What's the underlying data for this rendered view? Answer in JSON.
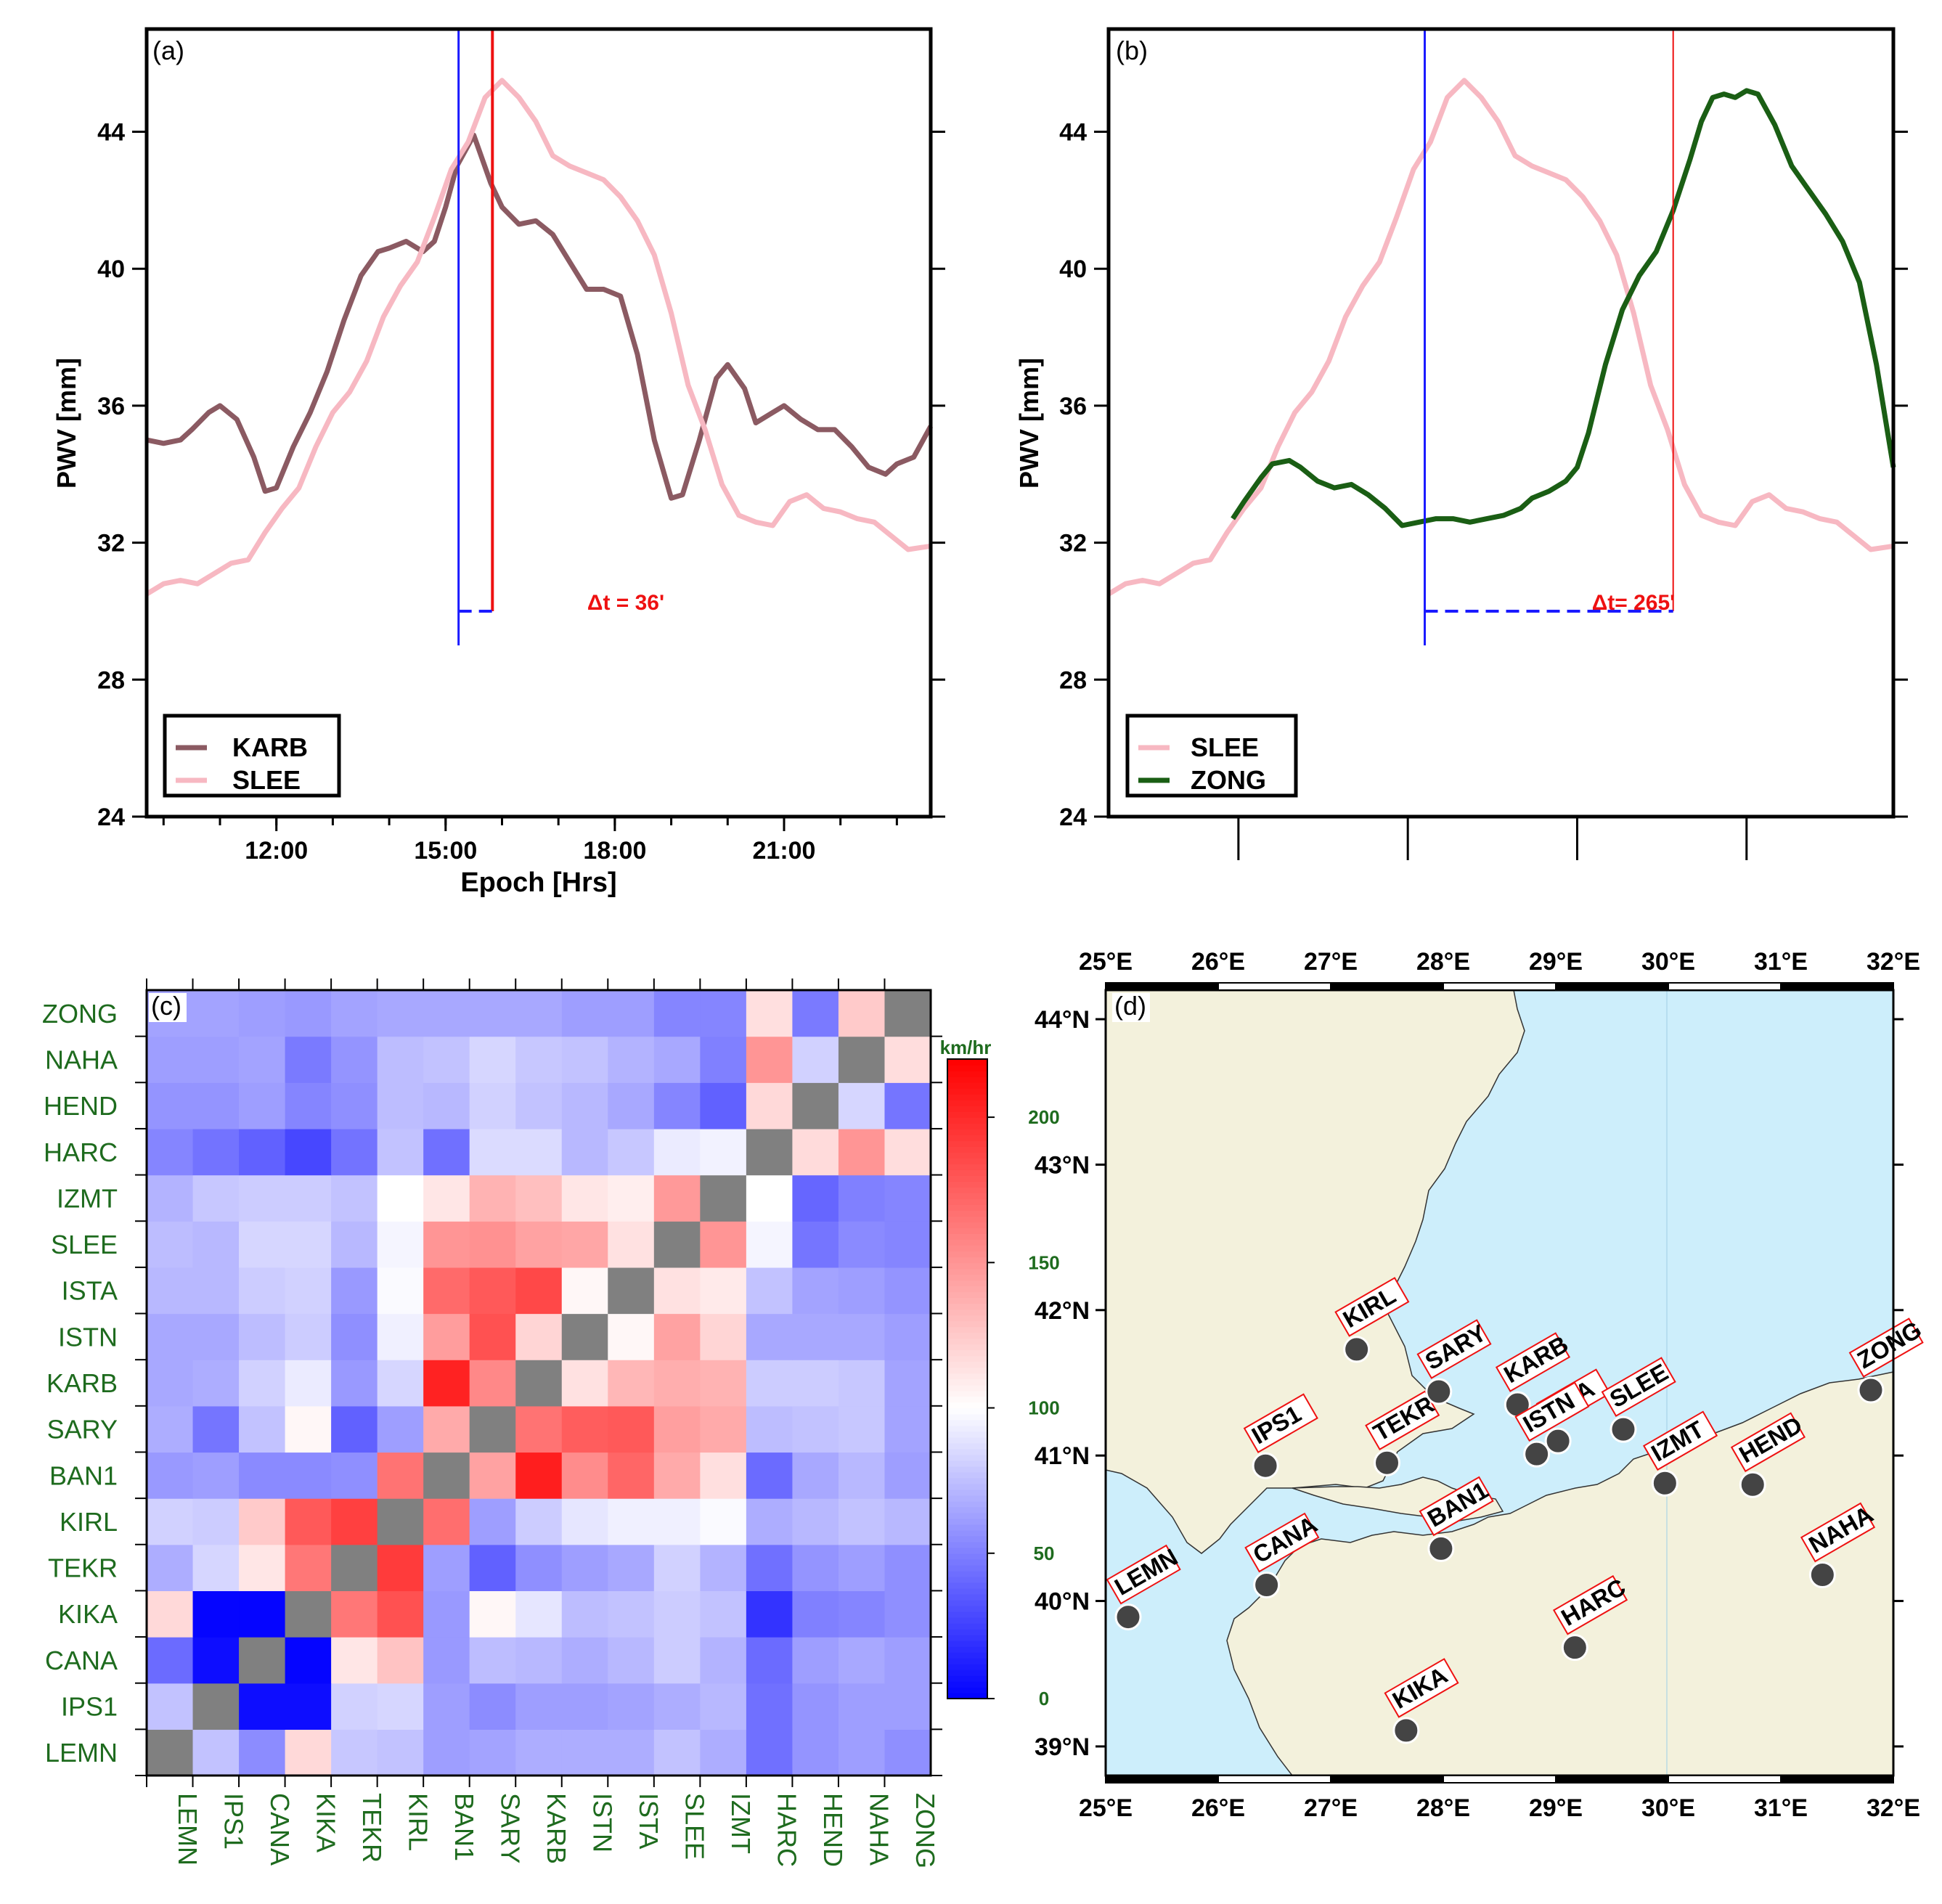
{
  "colors": {
    "karb": "#8b5a62",
    "slee": "#f7b8c2",
    "zong": "#1a5e14",
    "marker_blue": "#1a1aff",
    "marker_red": "#ee1111",
    "green_text": "#1e6b1e",
    "land": "#f3f1dc",
    "sea": "#cdeefb",
    "diag": "#808080"
  },
  "chart_data": [
    {
      "panel": "(a)",
      "type": "line",
      "ylabel": "PWV [mm]",
      "xlabel": "Epoch [Hrs]",
      "xlim": [
        9.7,
        23.6
      ],
      "ylim": [
        24,
        47
      ],
      "yticks": [
        24,
        28,
        32,
        36,
        40,
        44
      ],
      "xticks": [
        12,
        15,
        18,
        21
      ],
      "xticklabels": [
        "12:00",
        "15:00",
        "18:00",
        "21:00"
      ],
      "series": [
        {
          "name": "KARB",
          "color": "karb",
          "x": [
            9.7,
            10.0,
            10.3,
            10.5,
            10.8,
            11.0,
            11.3,
            11.6,
            11.8,
            12.0,
            12.3,
            12.6,
            12.9,
            13.2,
            13.5,
            13.8,
            14.0,
            14.3,
            14.6,
            14.8,
            15.0,
            15.2,
            15.5,
            15.8,
            16.0,
            16.3,
            16.6,
            16.9,
            17.2,
            17.5,
            17.8,
            18.1,
            18.4,
            18.7,
            19.0,
            19.2,
            19.5,
            19.8,
            20.0,
            20.3,
            20.5,
            20.8,
            21.0,
            21.3,
            21.6,
            21.9,
            22.2,
            22.5,
            22.8,
            23.0,
            23.3,
            23.6
          ],
          "y": [
            35.0,
            34.9,
            35.0,
            35.3,
            35.8,
            36.0,
            35.6,
            34.5,
            33.5,
            33.6,
            34.8,
            35.8,
            37.0,
            38.5,
            39.8,
            40.5,
            40.6,
            40.8,
            40.5,
            40.8,
            41.8,
            43.0,
            43.9,
            42.5,
            41.8,
            41.3,
            41.4,
            41.0,
            40.2,
            39.4,
            39.4,
            39.2,
            37.5,
            35.0,
            33.3,
            33.4,
            35.0,
            36.8,
            37.2,
            36.5,
            35.5,
            35.8,
            36.0,
            35.6,
            35.3,
            35.3,
            34.8,
            34.2,
            34.0,
            34.3,
            34.5,
            35.4
          ]
        },
        {
          "name": "SLEE",
          "color": "slee",
          "x": [
            9.7,
            10.0,
            10.3,
            10.6,
            10.9,
            11.2,
            11.5,
            11.8,
            12.1,
            12.4,
            12.7,
            13.0,
            13.3,
            13.6,
            13.9,
            14.2,
            14.5,
            14.8,
            15.1,
            15.4,
            15.7,
            16.0,
            16.3,
            16.6,
            16.9,
            17.2,
            17.5,
            17.8,
            18.1,
            18.4,
            18.7,
            19.0,
            19.3,
            19.6,
            19.9,
            20.2,
            20.5,
            20.8,
            21.1,
            21.4,
            21.7,
            22.0,
            22.3,
            22.6,
            22.9,
            23.2,
            23.6
          ],
          "y": [
            30.5,
            30.8,
            30.9,
            30.8,
            31.1,
            31.4,
            31.5,
            32.3,
            33.0,
            33.6,
            34.8,
            35.8,
            36.4,
            37.3,
            38.6,
            39.5,
            40.2,
            41.5,
            42.9,
            43.7,
            45.0,
            45.5,
            45.0,
            44.3,
            43.3,
            43.0,
            42.8,
            42.6,
            42.1,
            41.4,
            40.4,
            38.7,
            36.6,
            35.3,
            33.7,
            32.8,
            32.6,
            32.5,
            33.2,
            33.4,
            33.0,
            32.9,
            32.7,
            32.6,
            32.2,
            31.8,
            31.9
          ]
        }
      ],
      "annotations": {
        "label": "Δt = 36'",
        "t_blue": 15.23,
        "t_red": 15.83
      }
    },
    {
      "panel": "(b)",
      "type": "line",
      "ylabel": "PWV [mm]",
      "xlabel": "",
      "xlim": [
        9.7,
        23.6
      ],
      "ylim": [
        24,
        47
      ],
      "yticks": [
        24,
        28,
        32,
        36,
        40,
        44
      ],
      "xticks": [
        12,
        15,
        18,
        21
      ],
      "xticklabels": [],
      "series": [
        {
          "name": "SLEE",
          "color": "slee",
          "x": [
            9.7,
            10.0,
            10.3,
            10.6,
            10.9,
            11.2,
            11.5,
            11.8,
            12.1,
            12.4,
            12.7,
            13.0,
            13.3,
            13.6,
            13.9,
            14.2,
            14.5,
            14.8,
            15.1,
            15.4,
            15.7,
            16.0,
            16.3,
            16.6,
            16.9,
            17.2,
            17.5,
            17.8,
            18.1,
            18.4,
            18.7,
            19.0,
            19.3,
            19.6,
            19.9,
            20.2,
            20.5,
            20.8,
            21.1,
            21.4,
            21.7,
            22.0,
            22.3,
            22.6,
            22.9,
            23.2,
            23.6
          ],
          "y": [
            30.5,
            30.8,
            30.9,
            30.8,
            31.1,
            31.4,
            31.5,
            32.3,
            33.0,
            33.6,
            34.8,
            35.8,
            36.4,
            37.3,
            38.6,
            39.5,
            40.2,
            41.5,
            42.9,
            43.7,
            45.0,
            45.5,
            45.0,
            44.3,
            43.3,
            43.0,
            42.8,
            42.6,
            42.1,
            41.4,
            40.4,
            38.7,
            36.6,
            35.3,
            33.7,
            32.8,
            32.6,
            32.5,
            33.2,
            33.4,
            33.0,
            32.9,
            32.7,
            32.6,
            32.2,
            31.8,
            31.9
          ]
        },
        {
          "name": "ZONG",
          "color": "zong",
          "x": [
            11.9,
            12.1,
            12.4,
            12.6,
            12.9,
            13.1,
            13.4,
            13.7,
            14.0,
            14.3,
            14.6,
            14.9,
            15.2,
            15.5,
            15.8,
            16.1,
            16.4,
            16.7,
            17.0,
            17.2,
            17.5,
            17.8,
            18.0,
            18.2,
            18.5,
            18.8,
            19.1,
            19.4,
            19.7,
            20.0,
            20.2,
            20.4,
            20.6,
            20.8,
            21.0,
            21.2,
            21.5,
            21.8,
            22.1,
            22.4,
            22.7,
            23.0,
            23.3,
            23.6
          ],
          "y": [
            32.7,
            33.2,
            33.9,
            34.3,
            34.4,
            34.2,
            33.8,
            33.6,
            33.7,
            33.4,
            33.0,
            32.5,
            32.6,
            32.7,
            32.7,
            32.6,
            32.7,
            32.8,
            33.0,
            33.3,
            33.5,
            33.8,
            34.2,
            35.2,
            37.2,
            38.8,
            39.8,
            40.5,
            41.7,
            43.2,
            44.3,
            45.0,
            45.1,
            45.0,
            45.2,
            45.1,
            44.2,
            43.0,
            42.3,
            41.6,
            40.8,
            39.6,
            37.2,
            34.2
          ]
        }
      ],
      "annotations": {
        "label": "Δt= 265'",
        "t_blue": 15.3,
        "t_red": 19.7
      }
    },
    {
      "panel": "(c)",
      "type": "heatmap",
      "stations": [
        "LEMN",
        "IPS1",
        "CANA",
        "KIKA",
        "TEKR",
        "KIRL",
        "BAN1",
        "SARY",
        "KARB",
        "ISTN",
        "ISTA",
        "SLEE",
        "IZMT",
        "HARC",
        "HEND",
        "NAHA",
        "ZONG"
      ],
      "colorbar_label": "km/hr",
      "vmin": 0,
      "vmax": 220,
      "colorbar_ticks": [
        0,
        50,
        100,
        150,
        200
      ],
      "values": [
        [
          null,
          76,
          55,
          118,
          78,
          76,
          62,
          64,
          68,
          68,
          68,
          76,
          68,
          44,
          58,
          62,
          56
        ],
        [
          76,
          null,
          5,
          5,
          82,
          84,
          62,
          55,
          62,
          62,
          64,
          68,
          72,
          44,
          58,
          62,
          62
        ],
        [
          42,
          5,
          null,
          2,
          112,
          128,
          60,
          74,
          72,
          68,
          72,
          80,
          70,
          42,
          62,
          66,
          62
        ],
        [
          118,
          2,
          2,
          null,
          164,
          182,
          60,
          104,
          90,
          74,
          76,
          80,
          76,
          20,
          50,
          52,
          56
        ],
        [
          68,
          84,
          112,
          164,
          null,
          192,
          62,
          38,
          56,
          62,
          66,
          82,
          70,
          44,
          58,
          62,
          56
        ],
        [
          82,
          80,
          125,
          178,
          190,
          null,
          168,
          62,
          80,
          90,
          94,
          94,
          98,
          68,
          72,
          76,
          72
        ],
        [
          60,
          62,
          54,
          54,
          56,
          166,
          null,
          144,
          206,
          154,
          172,
          140,
          115,
          42,
          66,
          72,
          62
        ],
        [
          68,
          46,
          76,
          104,
          38,
          62,
          140,
          null,
          166,
          176,
          178,
          145,
          140,
          74,
          76,
          78,
          64
        ],
        [
          66,
          68,
          82,
          92,
          60,
          84,
          204,
          156,
          null,
          114,
          134,
          138,
          136,
          80,
          80,
          78,
          64
        ],
        [
          66,
          66,
          74,
          80,
          56,
          94,
          146,
          182,
          120,
          null,
          104,
          144,
          120,
          66,
          66,
          66,
          62
        ],
        [
          72,
          72,
          80,
          82,
          60,
          98,
          170,
          178,
          186,
          104,
          null,
          114,
          110,
          76,
          64,
          62,
          58
        ],
        [
          74,
          72,
          84,
          84,
          72,
          96,
          150,
          152,
          144,
          142,
          114,
          null,
          150,
          96,
          46,
          54,
          52
        ],
        [
          70,
          78,
          80,
          80,
          76,
          100,
          112,
          136,
          130,
          112,
          108,
          148,
          null,
          100,
          40,
          50,
          52
        ],
        [
          52,
          45,
          38,
          28,
          45,
          76,
          44,
          86,
          86,
          72,
          78,
          92,
          95,
          null,
          117,
          150,
          116
        ],
        [
          58,
          58,
          62,
          52,
          56,
          74,
          72,
          82,
          76,
          72,
          66,
          52,
          38,
          118,
          null,
          84,
          46
        ],
        [
          62,
          62,
          64,
          48,
          58,
          74,
          76,
          84,
          78,
          76,
          70,
          66,
          50,
          150,
          82,
          null,
          116
        ],
        [
          64,
          64,
          62,
          60,
          64,
          66,
          66,
          66,
          66,
          62,
          62,
          52,
          52,
          115,
          48,
          125,
          null
        ]
      ]
    },
    {
      "panel": "(d)",
      "type": "map",
      "lon_range": [
        25,
        32
      ],
      "lat_range": [
        38.8,
        44.2
      ],
      "lon_ticks": [
        25,
        26,
        27,
        28,
        29,
        30,
        31,
        32
      ],
      "lon_labels": [
        "25°E",
        "26°E",
        "27°E",
        "28°E",
        "29°E",
        "30°E",
        "31°E",
        "32°E"
      ],
      "lat_ticks": [
        39,
        40,
        41,
        42,
        43,
        44
      ],
      "lat_labels": [
        "39°N",
        "40°N",
        "41°N",
        "42°N",
        "43°N",
        "44°N"
      ],
      "stations": [
        {
          "name": "LEMN",
          "lon": 25.2,
          "lat": 39.89
        },
        {
          "name": "IPS1",
          "lon": 26.42,
          "lat": 40.93
        },
        {
          "name": "CANA",
          "lon": 26.43,
          "lat": 40.11
        },
        {
          "name": "KIKA",
          "lon": 27.67,
          "lat": 39.11
        },
        {
          "name": "TEKR",
          "lon": 27.5,
          "lat": 40.95
        },
        {
          "name": "KIRL",
          "lon": 27.23,
          "lat": 41.73
        },
        {
          "name": "BAN1",
          "lon": 27.98,
          "lat": 40.36
        },
        {
          "name": "SARY",
          "lon": 27.96,
          "lat": 41.44
        },
        {
          "name": "KARB",
          "lon": 28.66,
          "lat": 41.35
        },
        {
          "name": "ISTA",
          "lon": 29.02,
          "lat": 41.1
        },
        {
          "name": "ISTN",
          "lon": 28.83,
          "lat": 41.01
        },
        {
          "name": "SLEE",
          "lon": 29.6,
          "lat": 41.18
        },
        {
          "name": "IZMT",
          "lon": 29.97,
          "lat": 40.81
        },
        {
          "name": "HARC",
          "lon": 29.17,
          "lat": 39.68
        },
        {
          "name": "HEND",
          "lon": 30.75,
          "lat": 40.8
        },
        {
          "name": "NAHA",
          "lon": 31.37,
          "lat": 40.18
        },
        {
          "name": "ZONG",
          "lon": 31.8,
          "lat": 41.45
        }
      ]
    }
  ]
}
